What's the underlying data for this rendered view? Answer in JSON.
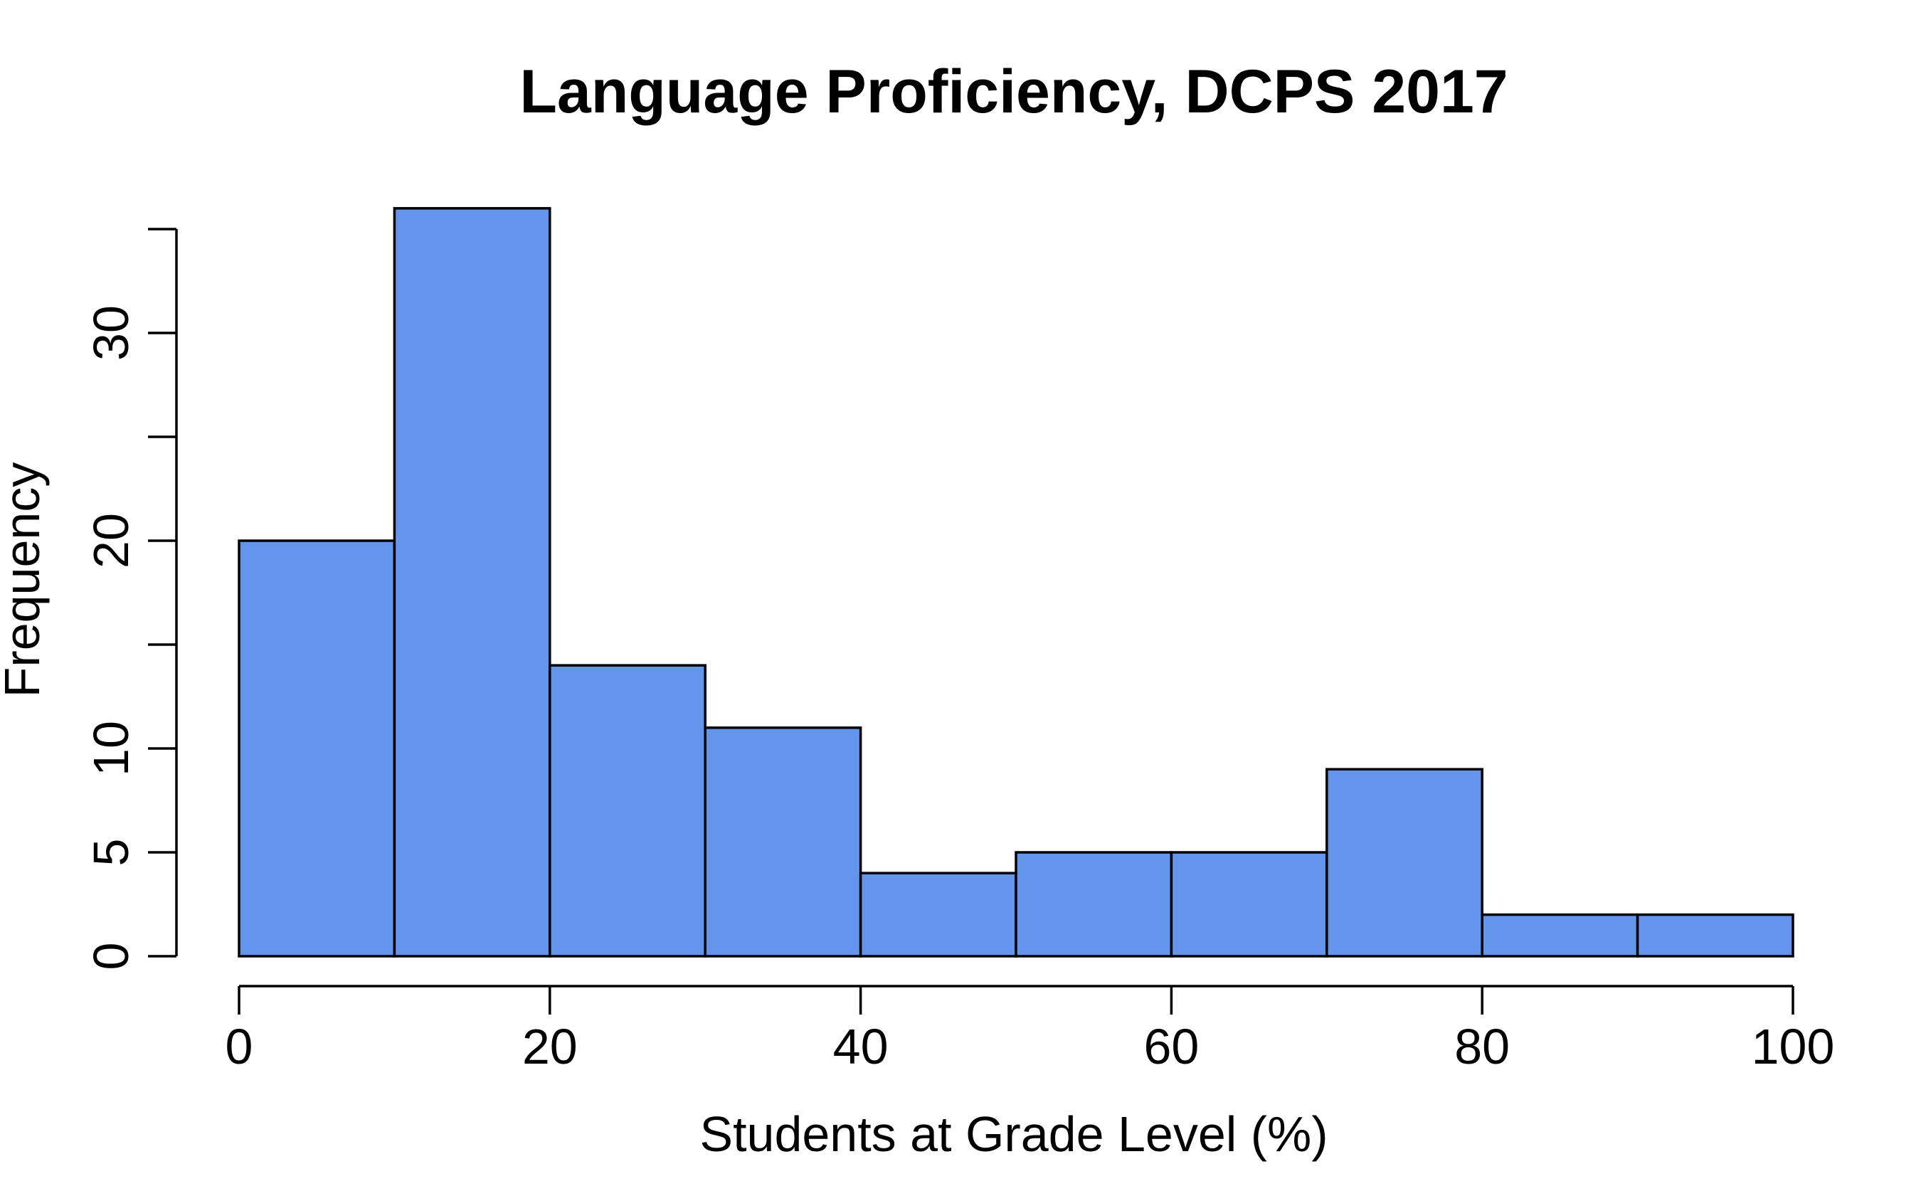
{
  "chart_data": {
    "type": "bar",
    "title": "Language Proficiency, DCPS 2017",
    "xlabel": "Students at Grade Level (%)",
    "ylabel": "Frequency",
    "bins": [
      {
        "start": 0,
        "end": 10,
        "count": 20
      },
      {
        "start": 10,
        "end": 20,
        "count": 36
      },
      {
        "start": 20,
        "end": 30,
        "count": 14
      },
      {
        "start": 30,
        "end": 40,
        "count": 11
      },
      {
        "start": 40,
        "end": 50,
        "count": 4
      },
      {
        "start": 50,
        "end": 60,
        "count": 5
      },
      {
        "start": 60,
        "end": 70,
        "count": 5
      },
      {
        "start": 70,
        "end": 80,
        "count": 9
      },
      {
        "start": 80,
        "end": 90,
        "count": 2
      },
      {
        "start": 90,
        "end": 100,
        "count": 2
      }
    ],
    "xlim": [
      0,
      100
    ],
    "ylim": [
      0,
      35
    ],
    "x_ticks": [
      0,
      20,
      40,
      60,
      80,
      100
    ],
    "y_ticks": [
      0,
      5,
      10,
      15,
      20,
      25,
      30,
      35
    ],
    "y_tick_labels": [
      "0",
      "5",
      "10",
      "",
      "20",
      "",
      "30",
      ""
    ],
    "bar_color": "#6495ED",
    "grid": false,
    "legend": "none"
  }
}
